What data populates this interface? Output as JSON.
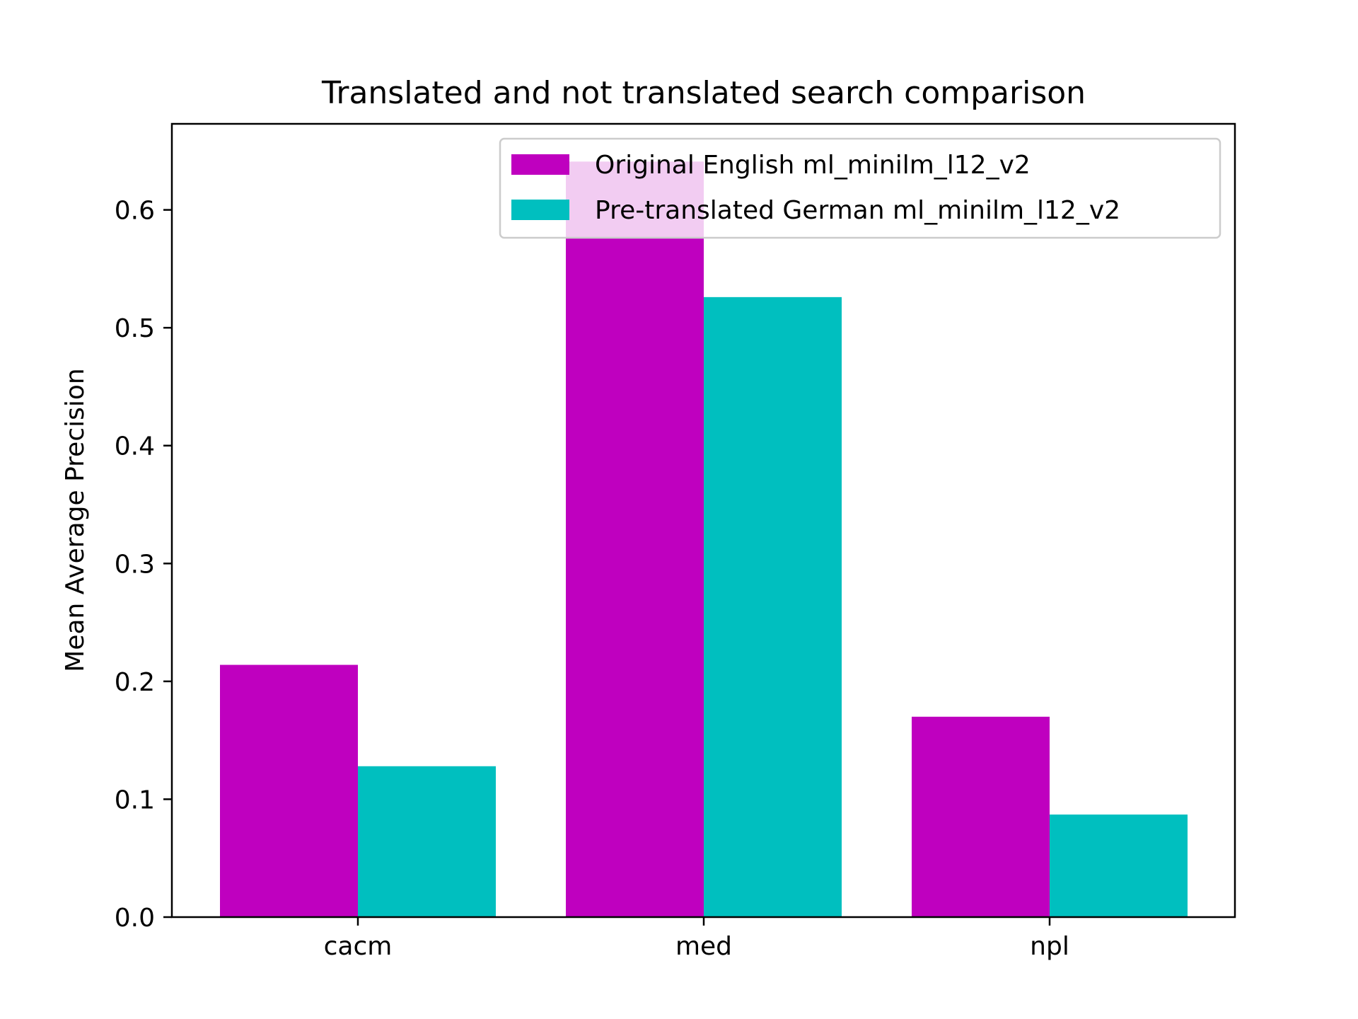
{
  "chart_data": {
    "type": "bar",
    "title": "Translated and not translated search comparison",
    "xlabel": "",
    "ylabel": "Mean Average Precision",
    "categories": [
      "cacm",
      "med",
      "npl"
    ],
    "series": [
      {
        "name": "Original English ml_minilm_l12_v2",
        "values": [
          0.214,
          0.641,
          0.17
        ],
        "color": "#bf00bf"
      },
      {
        "name": "Pre-translated German ml_minilm_l12_v2",
        "values": [
          0.128,
          0.526,
          0.087
        ],
        "color": "#00bfbf"
      }
    ],
    "ylim": [
      0,
      0.673
    ],
    "yticks": [
      "0.0",
      "0.1",
      "0.2",
      "0.3",
      "0.4",
      "0.5",
      "0.6"
    ],
    "grid": false,
    "legend_position": "upper right"
  }
}
